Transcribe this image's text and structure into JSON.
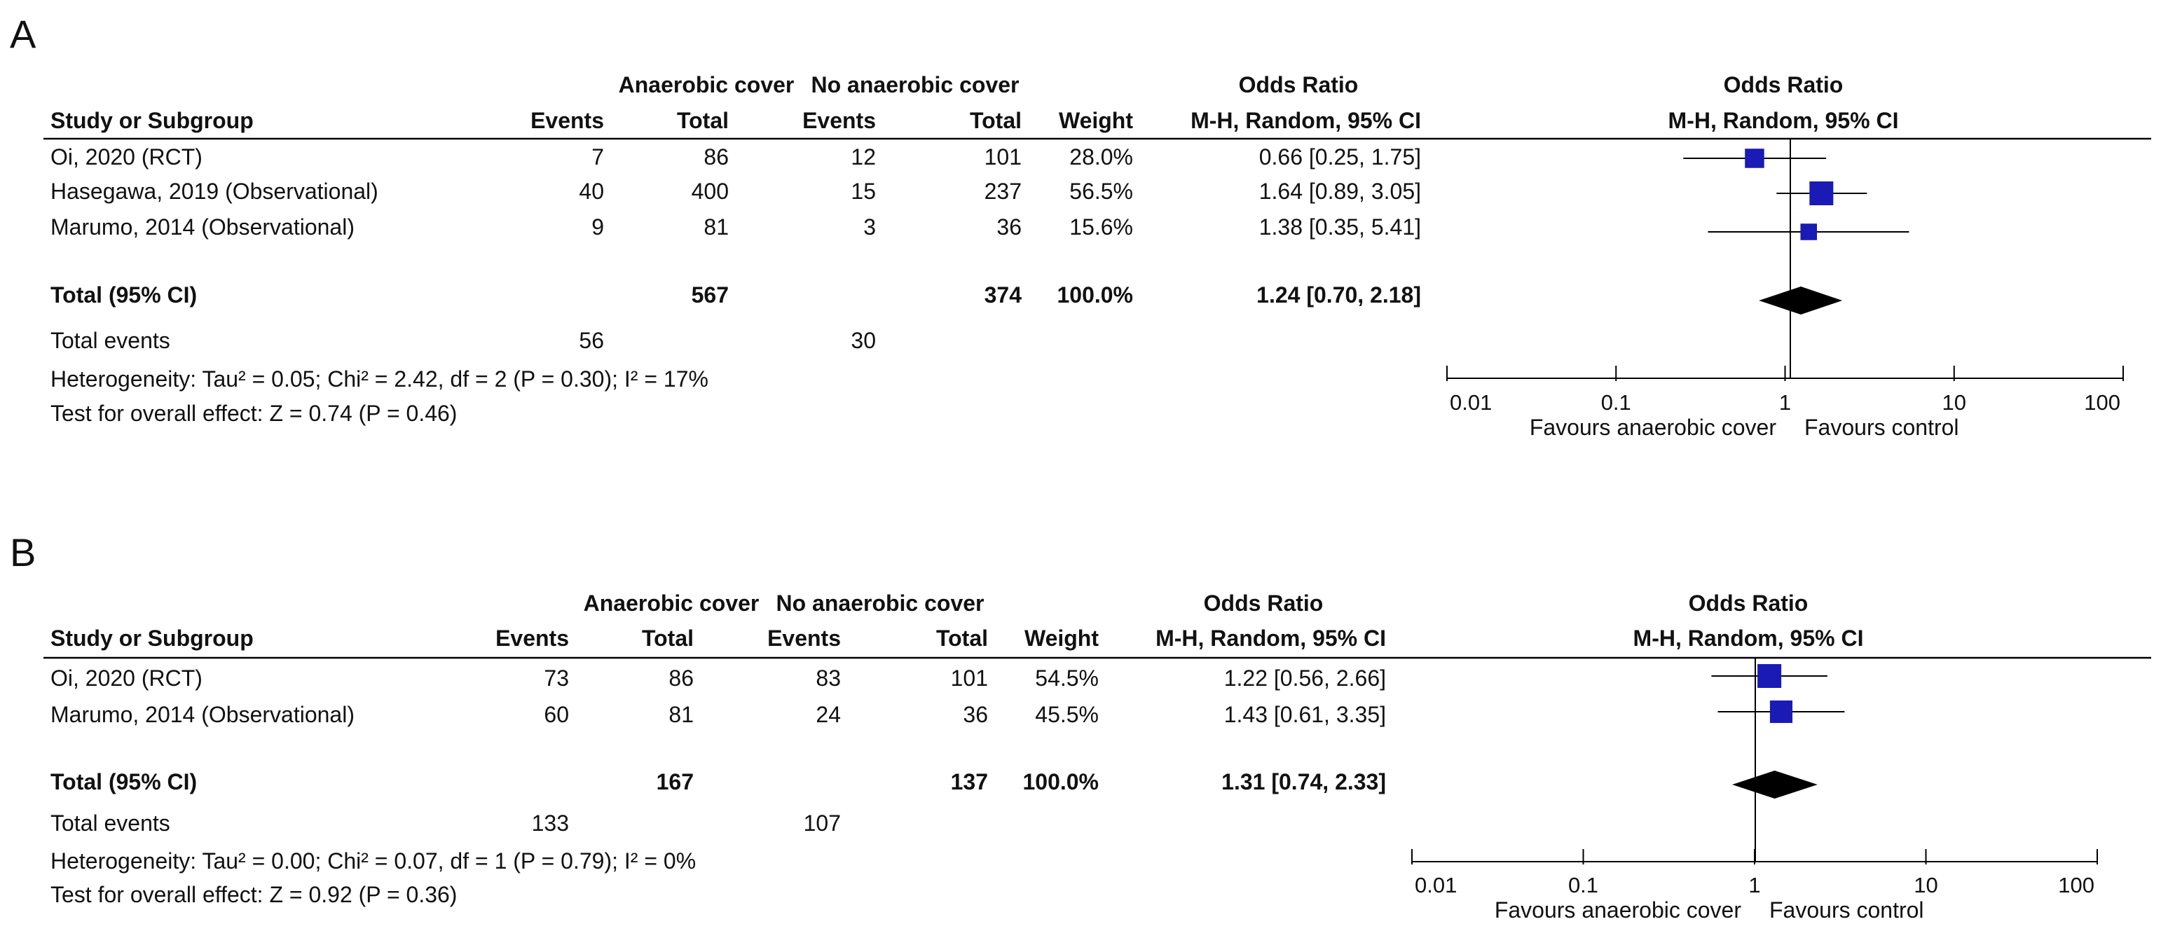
{
  "colors": {
    "marker": "#1a1ab5",
    "diamond": "#000000",
    "line": "#000000"
  },
  "headers": {
    "group1": "Anaerobic cover",
    "group2": "No anaerobic cover",
    "or_top": "Odds Ratio",
    "study": "Study or Subgroup",
    "events": "Events",
    "total": "Total",
    "weight": "Weight",
    "method": "M-H, Random, 95% CI"
  },
  "chart_data": [
    {
      "type": "forest",
      "panel": "A",
      "studies": [
        {
          "name": "Oi, 2020 (RCT)",
          "e1": "7",
          "t1": "86",
          "e2": "12",
          "t2": "101",
          "weight": "28.0%",
          "ci_text": "0.66 [0.25, 1.75]",
          "or": 0.66,
          "lo": 0.25,
          "hi": 1.75,
          "w": 28.0
        },
        {
          "name": "Hasegawa, 2019 (Observational)",
          "e1": "40",
          "t1": "400",
          "e2": "15",
          "t2": "237",
          "weight": "56.5%",
          "ci_text": "1.64 [0.89, 3.05]",
          "or": 1.64,
          "lo": 0.89,
          "hi": 3.05,
          "w": 56.5
        },
        {
          "name": "Marumo, 2014 (Observational)",
          "e1": "9",
          "t1": "81",
          "e2": "3",
          "t2": "36",
          "weight": "15.6%",
          "ci_text": "1.38 [0.35, 5.41]",
          "or": 1.38,
          "lo": 0.35,
          "hi": 5.41,
          "w": 15.6
        }
      ],
      "total": {
        "label": "Total (95% CI)",
        "t1": "567",
        "t2": "374",
        "weight": "100.0%",
        "ci_text": "1.24 [0.70, 2.18]",
        "or": 1.24,
        "lo": 0.7,
        "hi": 2.18
      },
      "total_events": {
        "label": "Total events",
        "e1": "56",
        "e2": "30"
      },
      "heterogeneity": "Heterogeneity: Tau² = 0.05; Chi² = 2.42, df = 2 (P = 0.30); I² = 17%",
      "overall": "Test for overall effect: Z = 0.74 (P = 0.46)",
      "axis": {
        "scale": "log",
        "ticks": [
          "0.01",
          "0.1",
          "1",
          "10",
          "100"
        ],
        "range": [
          0.01,
          100
        ]
      },
      "favours_left": "Favours anaerobic cover",
      "favours_right": "Favours control"
    },
    {
      "type": "forest",
      "panel": "B",
      "studies": [
        {
          "name": "Oi, 2020 (RCT)",
          "e1": "73",
          "t1": "86",
          "e2": "83",
          "t2": "101",
          "weight": "54.5%",
          "ci_text": "1.22 [0.56, 2.66]",
          "or": 1.22,
          "lo": 0.56,
          "hi": 2.66,
          "w": 54.5
        },
        {
          "name": "Marumo, 2014 (Observational)",
          "e1": "60",
          "t1": "81",
          "e2": "24",
          "t2": "36",
          "weight": "45.5%",
          "ci_text": "1.43 [0.61, 3.35]",
          "or": 1.43,
          "lo": 0.61,
          "hi": 3.35,
          "w": 45.5
        }
      ],
      "total": {
        "label": "Total (95% CI)",
        "t1": "167",
        "t2": "137",
        "weight": "100.0%",
        "ci_text": "1.31 [0.74, 2.33]",
        "or": 1.31,
        "lo": 0.74,
        "hi": 2.33
      },
      "total_events": {
        "label": "Total events",
        "e1": "133",
        "e2": "107"
      },
      "heterogeneity": "Heterogeneity: Tau² = 0.00; Chi² = 0.07, df = 1 (P = 0.79); I² = 0%",
      "overall": "Test for overall effect: Z = 0.92 (P = 0.36)",
      "axis": {
        "scale": "log",
        "ticks": [
          "0.01",
          "0.1",
          "1",
          "10",
          "100"
        ],
        "range": [
          0.01,
          100
        ]
      },
      "favours_left": "Favours anaerobic cover",
      "favours_right": "Favours control"
    }
  ]
}
